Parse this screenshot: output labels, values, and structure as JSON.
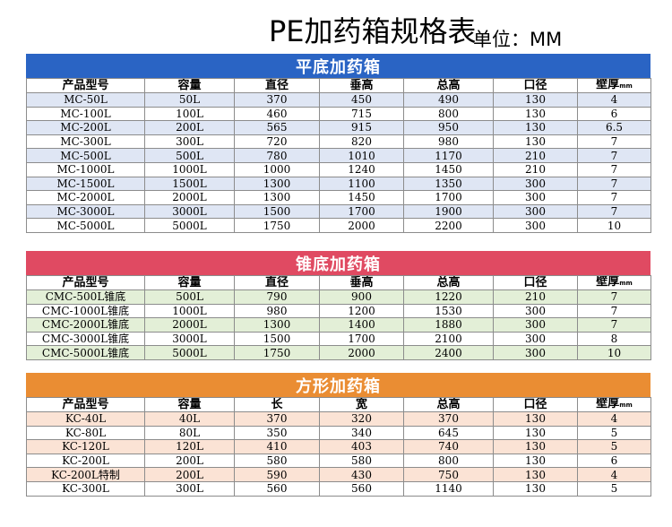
{
  "title": "PE加药箱规格表",
  "unit": "单位：MM",
  "colors": {
    "section1": "#2a64c4",
    "section2": "#e04a62",
    "section3": "#ea8d33"
  },
  "sections": [
    {
      "title": "平底加药箱",
      "headers": [
        "产品型号",
        "容量",
        "直径",
        "垂高",
        "总高",
        "口径",
        "壁厚",
        "mm"
      ],
      "rows": [
        [
          "MC-50L",
          "50L",
          "370",
          "450",
          "490",
          "130",
          "4"
        ],
        [
          "MC-100L",
          "100L",
          "460",
          "715",
          "800",
          "130",
          "6"
        ],
        [
          "MC-200L",
          "200L",
          "565",
          "915",
          "950",
          "130",
          "6.5"
        ],
        [
          "MC-300L",
          "300L",
          "720",
          "820",
          "980",
          "130",
          "7"
        ],
        [
          "MC-500L",
          "500L",
          "780",
          "1010",
          "1170",
          "210",
          "7"
        ],
        [
          "MC-1000L",
          "1000L",
          "1000",
          "1240",
          "1450",
          "210",
          "7"
        ],
        [
          "MC-1500L",
          "1500L",
          "1300",
          "1100",
          "1350",
          "300",
          "7"
        ],
        [
          "MC-2000L",
          "2000L",
          "1300",
          "1450",
          "1700",
          "300",
          "7"
        ],
        [
          "MC-3000L",
          "3000L",
          "1500",
          "1700",
          "1900",
          "300",
          "7"
        ],
        [
          "MC-5000L",
          "5000L",
          "1750",
          "2000",
          "2200",
          "300",
          "10"
        ]
      ]
    },
    {
      "title": "锥底加药箱",
      "headers": [
        "产品型号",
        "容量",
        "直径",
        "垂高",
        "总高",
        "口径",
        "壁厚",
        "mm"
      ],
      "rows": [
        [
          "CMC-500L锥底",
          "500L",
          "790",
          "900",
          "1220",
          "210",
          "7"
        ],
        [
          "CMC-1000L锥底",
          "1000L",
          "980",
          "1200",
          "1530",
          "300",
          "7"
        ],
        [
          "CMC-2000L锥底",
          "2000L",
          "1300",
          "1400",
          "1880",
          "300",
          "7"
        ],
        [
          "CMC-3000L锥底",
          "3000L",
          "1500",
          "1700",
          "2100",
          "300",
          "8"
        ],
        [
          "CMC-5000L锥底",
          "5000L",
          "1750",
          "2000",
          "2400",
          "300",
          "10"
        ]
      ]
    },
    {
      "title": "方形加药箱",
      "headers": [
        "产品型号",
        "容量",
        "长",
        "宽",
        "总高",
        "口径",
        "壁厚",
        "mm"
      ],
      "rows": [
        [
          "KC-40L",
          "40L",
          "370",
          "320",
          "370",
          "130",
          "4"
        ],
        [
          "KC-80L",
          "80L",
          "350",
          "340",
          "645",
          "130",
          "5"
        ],
        [
          "KC-120L",
          "120L",
          "410",
          "403",
          "740",
          "130",
          "5"
        ],
        [
          "KC-200L",
          "200L",
          "580",
          "580",
          "800",
          "130",
          "6"
        ],
        [
          "KC-200L特制",
          "200L",
          "590",
          "430",
          "750",
          "130",
          "4"
        ],
        [
          "KC-300L",
          "300L",
          "560",
          "560",
          "1140",
          "130",
          "5"
        ]
      ]
    }
  ]
}
